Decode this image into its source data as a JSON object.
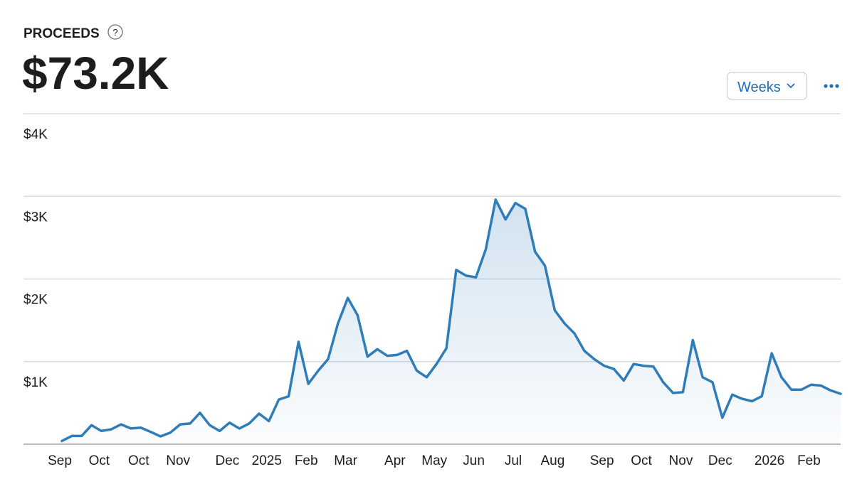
{
  "header": {
    "title": "PROCEEDS",
    "help": "?",
    "total": "$73.2K",
    "period_button": "Weeks"
  },
  "chart_data": {
    "type": "area",
    "categories": [
      "Sep",
      null,
      null,
      null,
      "Oct",
      null,
      null,
      null,
      "Oct",
      null,
      null,
      null,
      "Nov",
      null,
      null,
      null,
      null,
      "Dec",
      null,
      null,
      null,
      "2025",
      null,
      null,
      null,
      "Feb",
      null,
      null,
      null,
      "Mar",
      null,
      null,
      null,
      null,
      "Apr",
      null,
      null,
      null,
      "May",
      null,
      null,
      null,
      "Jun",
      null,
      null,
      null,
      "Jul",
      null,
      null,
      null,
      "Aug",
      null,
      null,
      null,
      null,
      "Sep",
      null,
      null,
      null,
      "Oct",
      null,
      null,
      null,
      "Nov",
      null,
      null,
      null,
      "Dec",
      null,
      null,
      null,
      null,
      "2026",
      null,
      null,
      null,
      "Feb",
      null,
      null,
      null
    ],
    "values": [
      40,
      100,
      100,
      230,
      160,
      180,
      240,
      190,
      200,
      150,
      95,
      140,
      240,
      250,
      380,
      230,
      160,
      260,
      190,
      250,
      370,
      280,
      540,
      580,
      1240,
      730,
      890,
      1030,
      1460,
      1770,
      1560,
      1060,
      1150,
      1070,
      1080,
      1130,
      890,
      810,
      970,
      1160,
      2110,
      2040,
      2020,
      2360,
      2960,
      2720,
      2920,
      2850,
      2330,
      2160,
      1620,
      1460,
      1340,
      1130,
      1030,
      950,
      910,
      770,
      970,
      950,
      940,
      750,
      620,
      630,
      1260,
      810,
      750,
      320,
      600,
      550,
      520,
      580,
      1100,
      810,
      660,
      660,
      720,
      710,
      650,
      610
    ],
    "color": "#2f7db8",
    "ylim": [
      0,
      4000
    ],
    "yticks": [
      {
        "value": 1000,
        "label": "$1K"
      },
      {
        "value": 2000,
        "label": "$2K"
      },
      {
        "value": 3000,
        "label": "$3K"
      },
      {
        "value": 4000,
        "label": "$4K"
      }
    ],
    "grid": true
  }
}
